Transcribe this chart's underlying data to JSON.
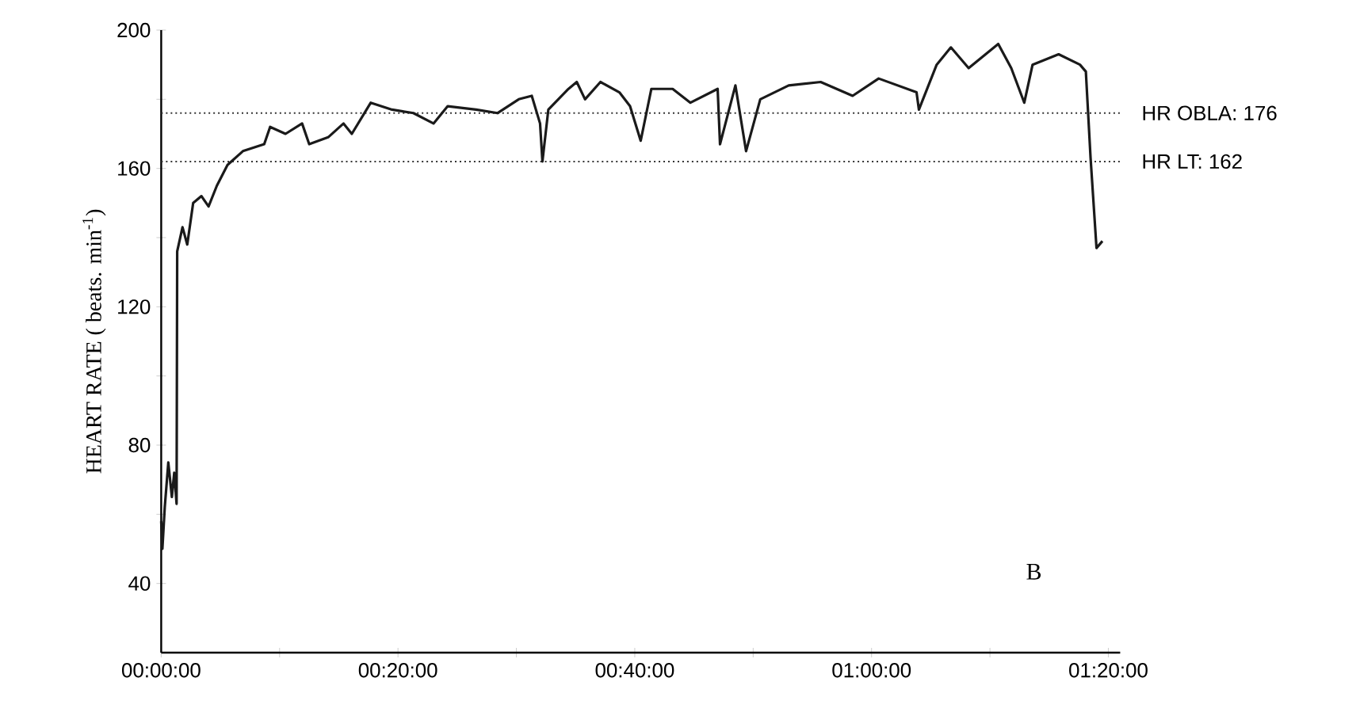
{
  "chart_data": {
    "type": "line",
    "ylabel": "HEART RATE ( beats. min$^{-1}$)",
    "color": "#1a1a1a",
    "line_style": "solid",
    "x": [
      0,
      0.1,
      0.3,
      0.6,
      0.9,
      1.1,
      1.3,
      1.35,
      1.8,
      2.2,
      2.7,
      3.4,
      4.0,
      4.7,
      5.6,
      6.9,
      8.7,
      9.2,
      10.5,
      11.9,
      12.5,
      14.1,
      15.4,
      16.1,
      17.7,
      19.5,
      21.3,
      23.0,
      24.2,
      26.6,
      28.4,
      30.2,
      31.3,
      32.0,
      32.2,
      32.7,
      34.4,
      35.1,
      35.8,
      37.1,
      38.7,
      39.6,
      40.5,
      41.4,
      43.2,
      44.7,
      47.0,
      47.2,
      48.5,
      49.4,
      50.6,
      53.0,
      55.7,
      58.4,
      60.6,
      63.8,
      64.0,
      65.5,
      66.7,
      68.2,
      70.7,
      71.8,
      72.9,
      73.6,
      75.8,
      77.6,
      78.1,
      78.5,
      79.0,
      79.5
    ],
    "values": [
      58,
      50,
      62,
      75,
      65,
      72,
      63,
      136,
      143,
      138,
      150,
      152,
      149,
      155,
      161,
      165,
      167,
      172,
      170,
      173,
      167,
      169,
      173,
      170,
      179,
      177,
      176,
      173,
      178,
      177,
      176,
      180,
      181,
      173,
      162,
      177,
      183,
      185,
      180,
      185,
      182,
      178,
      168,
      183,
      183,
      179,
      183,
      167,
      184,
      165,
      180,
      184,
      185,
      181,
      186,
      182,
      177,
      190,
      195,
      189,
      196,
      189,
      179,
      190,
      193,
      190,
      188,
      163,
      137,
      139
    ],
    "xlim": [
      0,
      81
    ],
    "ylim": [
      20,
      200
    ],
    "xticks": [
      {
        "value": 0,
        "label": "00:00:00"
      },
      {
        "value": 10,
        "label": null
      },
      {
        "value": 20,
        "label": "00:20:00"
      },
      {
        "value": 30,
        "label": null
      },
      {
        "value": 40,
        "label": "00:40:00"
      },
      {
        "value": 50,
        "label": null
      },
      {
        "value": 60,
        "label": "01:00:00"
      },
      {
        "value": 70,
        "label": null
      },
      {
        "value": 80,
        "label": "01:20:00"
      }
    ],
    "yticks": [
      40,
      {
        "value": 60,
        "label": null
      },
      80,
      {
        "value": 100,
        "label": null
      },
      120,
      {
        "value": 140,
        "label": null
      },
      160,
      {
        "value": 180,
        "label": null
      },
      200
    ],
    "ref_lines": [
      {
        "axis": "y",
        "value": 176,
        "label": "HR  OBLA: 176",
        "line_style": "dotted",
        "color": "#333333"
      },
      {
        "axis": "y",
        "value": 162,
        "label": "HR  LT:    162",
        "line_style": "dotted",
        "color": "#333333"
      }
    ],
    "annotations": [
      "B"
    ]
  }
}
